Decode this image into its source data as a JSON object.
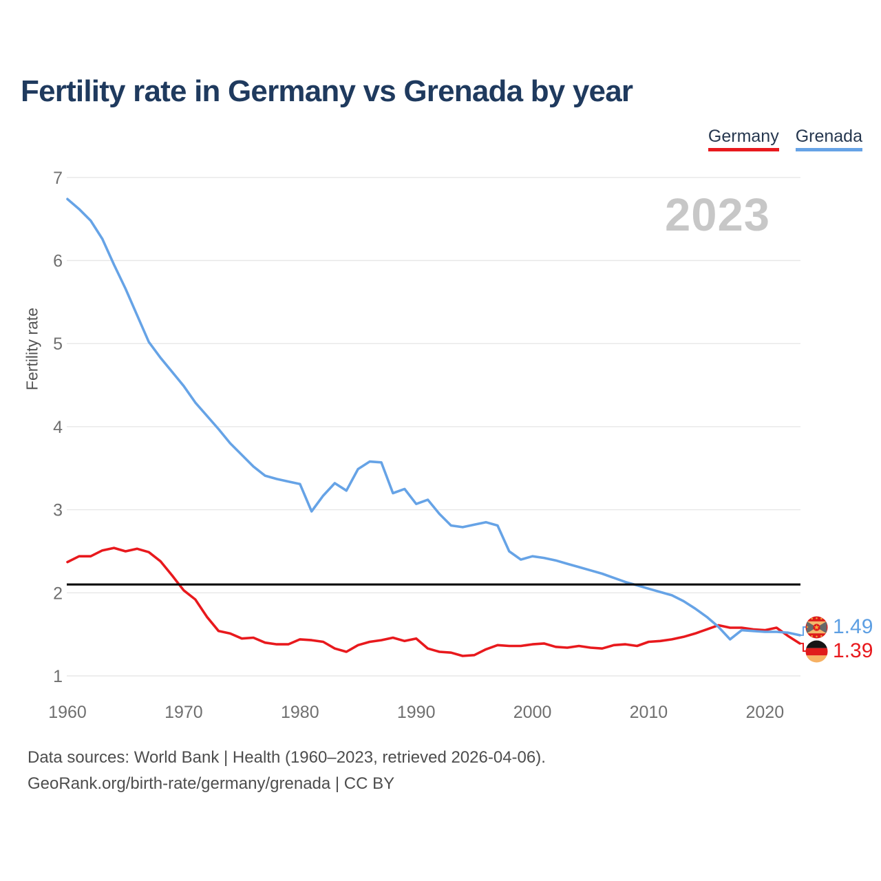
{
  "title": "Fertility rate in Germany vs Grenada by year",
  "legend": [
    {
      "label": "Germany",
      "color": "#e8191d"
    },
    {
      "label": "Grenada",
      "color": "#66a3e6"
    }
  ],
  "watermark": "2023",
  "y_axis": {
    "title": "Fertility rate",
    "ticks": [
      7,
      6,
      5,
      4,
      3,
      2,
      1
    ]
  },
  "x_axis": {
    "ticks": [
      1960,
      1970,
      1980,
      1990,
      2000,
      2010,
      2020
    ]
  },
  "end_labels": {
    "grenada_value": "1.49",
    "germany_value": "1.39"
  },
  "footer": {
    "line1": "Data sources: World Bank | Health (1960–2023, retrieved 2026-04-06).",
    "line2": "GeoRank.org/birth-rate/germany/grenada | CC BY"
  },
  "chart_data": {
    "type": "line",
    "x_start": 1960,
    "x_end": 2023,
    "xlabel": "",
    "ylabel": "Fertility rate",
    "ylim": [
      1,
      7
    ],
    "grid": "horizontal",
    "legend_position": "top-right",
    "replacement_line": 2.1,
    "colors": {
      "germany": "#e8191d",
      "grenada": "#66a3e6",
      "replacement_line": "#0a0a0a",
      "gridline": "#e7e7e7",
      "tick_text": "#6f6f6f",
      "title_text": "#1f3a5e",
      "watermark_text": "#c7c7c7"
    },
    "series": [
      {
        "name": "Germany",
        "color": "#e8191d",
        "values": [
          2.37,
          2.44,
          2.44,
          2.51,
          2.54,
          2.5,
          2.53,
          2.49,
          2.38,
          2.21,
          2.03,
          1.92,
          1.71,
          1.54,
          1.51,
          1.45,
          1.46,
          1.4,
          1.38,
          1.38,
          1.44,
          1.43,
          1.41,
          1.33,
          1.29,
          1.37,
          1.41,
          1.43,
          1.46,
          1.42,
          1.45,
          1.33,
          1.29,
          1.28,
          1.24,
          1.25,
          1.32,
          1.37,
          1.36,
          1.36,
          1.38,
          1.39,
          1.35,
          1.34,
          1.36,
          1.34,
          1.33,
          1.37,
          1.38,
          1.36,
          1.41,
          1.42,
          1.44,
          1.47,
          1.51,
          1.56,
          1.61,
          1.58,
          1.58,
          1.56,
          1.55,
          1.58,
          1.48,
          1.39
        ]
      },
      {
        "name": "Grenada",
        "color": "#66a3e6",
        "values": [
          6.74,
          6.62,
          6.48,
          6.26,
          5.95,
          5.66,
          5.34,
          5.02,
          4.83,
          4.66,
          4.49,
          4.29,
          4.13,
          3.97,
          3.8,
          3.66,
          3.52,
          3.41,
          3.37,
          3.34,
          3.31,
          2.98,
          3.17,
          3.32,
          3.23,
          3.49,
          3.58,
          3.57,
          3.2,
          3.25,
          3.07,
          3.12,
          2.95,
          2.81,
          2.79,
          2.82,
          2.85,
          2.81,
          2.5,
          2.4,
          2.44,
          2.42,
          2.39,
          2.35,
          2.31,
          2.27,
          2.23,
          2.18,
          2.13,
          2.09,
          2.05,
          2.01,
          1.97,
          1.9,
          1.81,
          1.71,
          1.59,
          1.44,
          1.55,
          1.54,
          1.53,
          1.53,
          1.52,
          1.49
        ]
      }
    ]
  }
}
